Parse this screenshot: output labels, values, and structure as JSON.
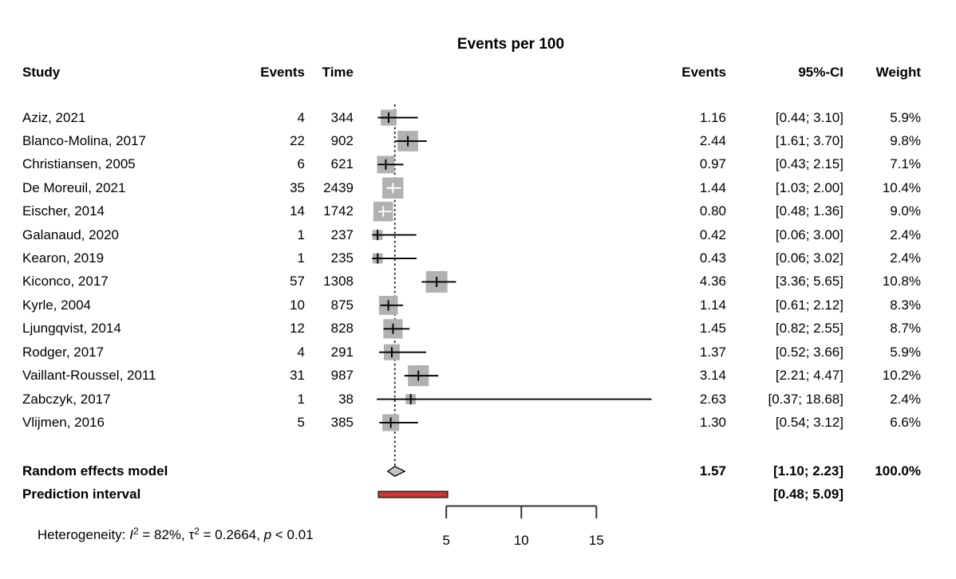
{
  "chart_data": {
    "type": "forest",
    "title": "Events per 100",
    "headers": {
      "study": "Study",
      "events": "Events",
      "time": "Time",
      "rate": "Events",
      "ci": "95%-CI",
      "weight": "Weight"
    },
    "x_axis": {
      "ticks": [
        5,
        10,
        15
      ],
      "range_shown": [
        5,
        15
      ]
    },
    "studies": [
      {
        "name": "Aziz, 2021",
        "events": "4",
        "time": "344",
        "rate": 1.16,
        "lo": 0.44,
        "hi": 3.1,
        "rate_label": "1.16",
        "ci_label": "[0.44; 3.10]",
        "weight": 5.9,
        "weight_label": "5.9%"
      },
      {
        "name": "Blanco-Molina, 2017",
        "events": "22",
        "time": "902",
        "rate": 2.44,
        "lo": 1.61,
        "hi": 3.7,
        "rate_label": "2.44",
        "ci_label": "[1.61; 3.70]",
        "weight": 9.8,
        "weight_label": "9.8%"
      },
      {
        "name": "Christiansen, 2005",
        "events": "6",
        "time": "621",
        "rate": 0.97,
        "lo": 0.43,
        "hi": 2.15,
        "rate_label": "0.97",
        "ci_label": "[0.43; 2.15]",
        "weight": 7.1,
        "weight_label": "7.1%"
      },
      {
        "name": "De Moreuil, 2021",
        "events": "35",
        "time": "2439",
        "rate": 1.44,
        "lo": 1.03,
        "hi": 2.0,
        "rate_label": "1.44",
        "ci_label": "[1.03; 2.00]",
        "weight": 10.4,
        "weight_label": "10.4%"
      },
      {
        "name": "Eischer, 2014",
        "events": "14",
        "time": "1742",
        "rate": 0.8,
        "lo": 0.48,
        "hi": 1.36,
        "rate_label": "0.80",
        "ci_label": "[0.48; 1.36]",
        "weight": 9.0,
        "weight_label": "9.0%"
      },
      {
        "name": "Galanaud, 2020",
        "events": "1",
        "time": "237",
        "rate": 0.42,
        "lo": 0.06,
        "hi": 3.0,
        "rate_label": "0.42",
        "ci_label": "[0.06; 3.00]",
        "weight": 2.4,
        "weight_label": "2.4%"
      },
      {
        "name": "Kearon, 2019",
        "events": "1",
        "time": "235",
        "rate": 0.43,
        "lo": 0.06,
        "hi": 3.02,
        "rate_label": "0.43",
        "ci_label": "[0.06; 3.02]",
        "weight": 2.4,
        "weight_label": "2.4%"
      },
      {
        "name": "Kiconco, 2017",
        "events": "57",
        "time": "1308",
        "rate": 4.36,
        "lo": 3.36,
        "hi": 5.65,
        "rate_label": "4.36",
        "ci_label": "[3.36; 5.65]",
        "weight": 10.8,
        "weight_label": "10.8%"
      },
      {
        "name": "Kyrle, 2004",
        "events": "10",
        "time": "875",
        "rate": 1.14,
        "lo": 0.61,
        "hi": 2.12,
        "rate_label": "1.14",
        "ci_label": "[0.61; 2.12]",
        "weight": 8.3,
        "weight_label": "8.3%"
      },
      {
        "name": "Ljungqvist, 2014",
        "events": "12",
        "time": "828",
        "rate": 1.45,
        "lo": 0.82,
        "hi": 2.55,
        "rate_label": "1.45",
        "ci_label": "[0.82; 2.55]",
        "weight": 8.7,
        "weight_label": "8.7%"
      },
      {
        "name": "Rodger, 2017",
        "events": "4",
        "time": "291",
        "rate": 1.37,
        "lo": 0.52,
        "hi": 3.66,
        "rate_label": "1.37",
        "ci_label": "[0.52; 3.66]",
        "weight": 5.9,
        "weight_label": "5.9%"
      },
      {
        "name": "Vaillant-Roussel, 2011",
        "events": "31",
        "time": "987",
        "rate": 3.14,
        "lo": 2.21,
        "hi": 4.47,
        "rate_label": "3.14",
        "ci_label": "[2.21; 4.47]",
        "weight": 10.2,
        "weight_label": "10.2%"
      },
      {
        "name": "Zabczyk, 2017",
        "events": "1",
        "time": "38",
        "rate": 2.63,
        "lo": 0.37,
        "hi": 18.68,
        "rate_label": "2.63",
        "ci_label": "[0.37; 18.68]",
        "weight": 2.4,
        "weight_label": "2.4%"
      },
      {
        "name": "Vlijmen, 2016",
        "events": "5",
        "time": "385",
        "rate": 1.3,
        "lo": 0.54,
        "hi": 3.12,
        "rate_label": "1.30",
        "ci_label": "[0.54; 3.12]",
        "weight": 6.6,
        "weight_label": "6.6%"
      }
    ],
    "summary": {
      "label": "Random effects model",
      "rate": 1.57,
      "lo": 1.1,
      "hi": 2.23,
      "rate_label": "1.57",
      "ci_label": "[1.10; 2.23]",
      "weight_label": "100.0%"
    },
    "prediction": {
      "label": "Prediction interval",
      "lo": 0.48,
      "hi": 5.09,
      "ci_label": "[0.48; 5.09]"
    },
    "heterogeneity": {
      "prefix": "Heterogeneity: ",
      "i_symbol": "I",
      "i_sup": "2",
      "i_rest": " = 82%, ",
      "tau_symbol": "τ",
      "tau_sup": "2",
      "tau_rest": " = 0.2664, ",
      "p_symbol": "p",
      "p_rest": " < 0.01"
    },
    "colors": {
      "square": "#b1b1b1",
      "diamond_fill": "#c4c4c4",
      "diamond_stroke": "#000000",
      "prediction_bar": "#d1342c",
      "prediction_border": "#1a1a1a",
      "line": "#000000",
      "inner_marker": "#ffffff"
    }
  }
}
